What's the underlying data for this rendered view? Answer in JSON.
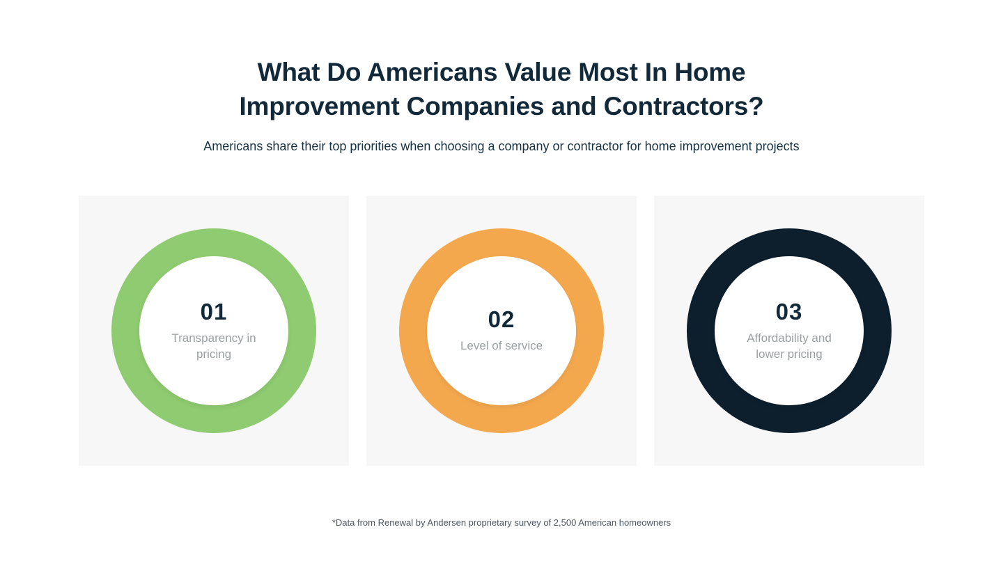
{
  "header": {
    "title_line1": "What Do Americans Value Most In Home",
    "title_line2": "Improvement Companies and Contractors?",
    "subtitle": "Americans share their top priorities when choosing a company or contractor for home improvement projects"
  },
  "cards": [
    {
      "number": "01",
      "label": "Transparency in pricing",
      "ring_color": "#8fcb70"
    },
    {
      "number": "02",
      "label": "Level of service",
      "ring_color": "#f4a84e"
    },
    {
      "number": "03",
      "label": "Affordability and lower pricing",
      "ring_color": "#0d1f2d"
    }
  ],
  "footer": {
    "note": "*Data from Renewal by Andersen proprietary survey of 2,500 American homeowners"
  },
  "colors": {
    "title_text": "#12293a",
    "label_text": "#9aa0a2",
    "card_background": "#f7f7f7",
    "page_background": "#ffffff"
  }
}
